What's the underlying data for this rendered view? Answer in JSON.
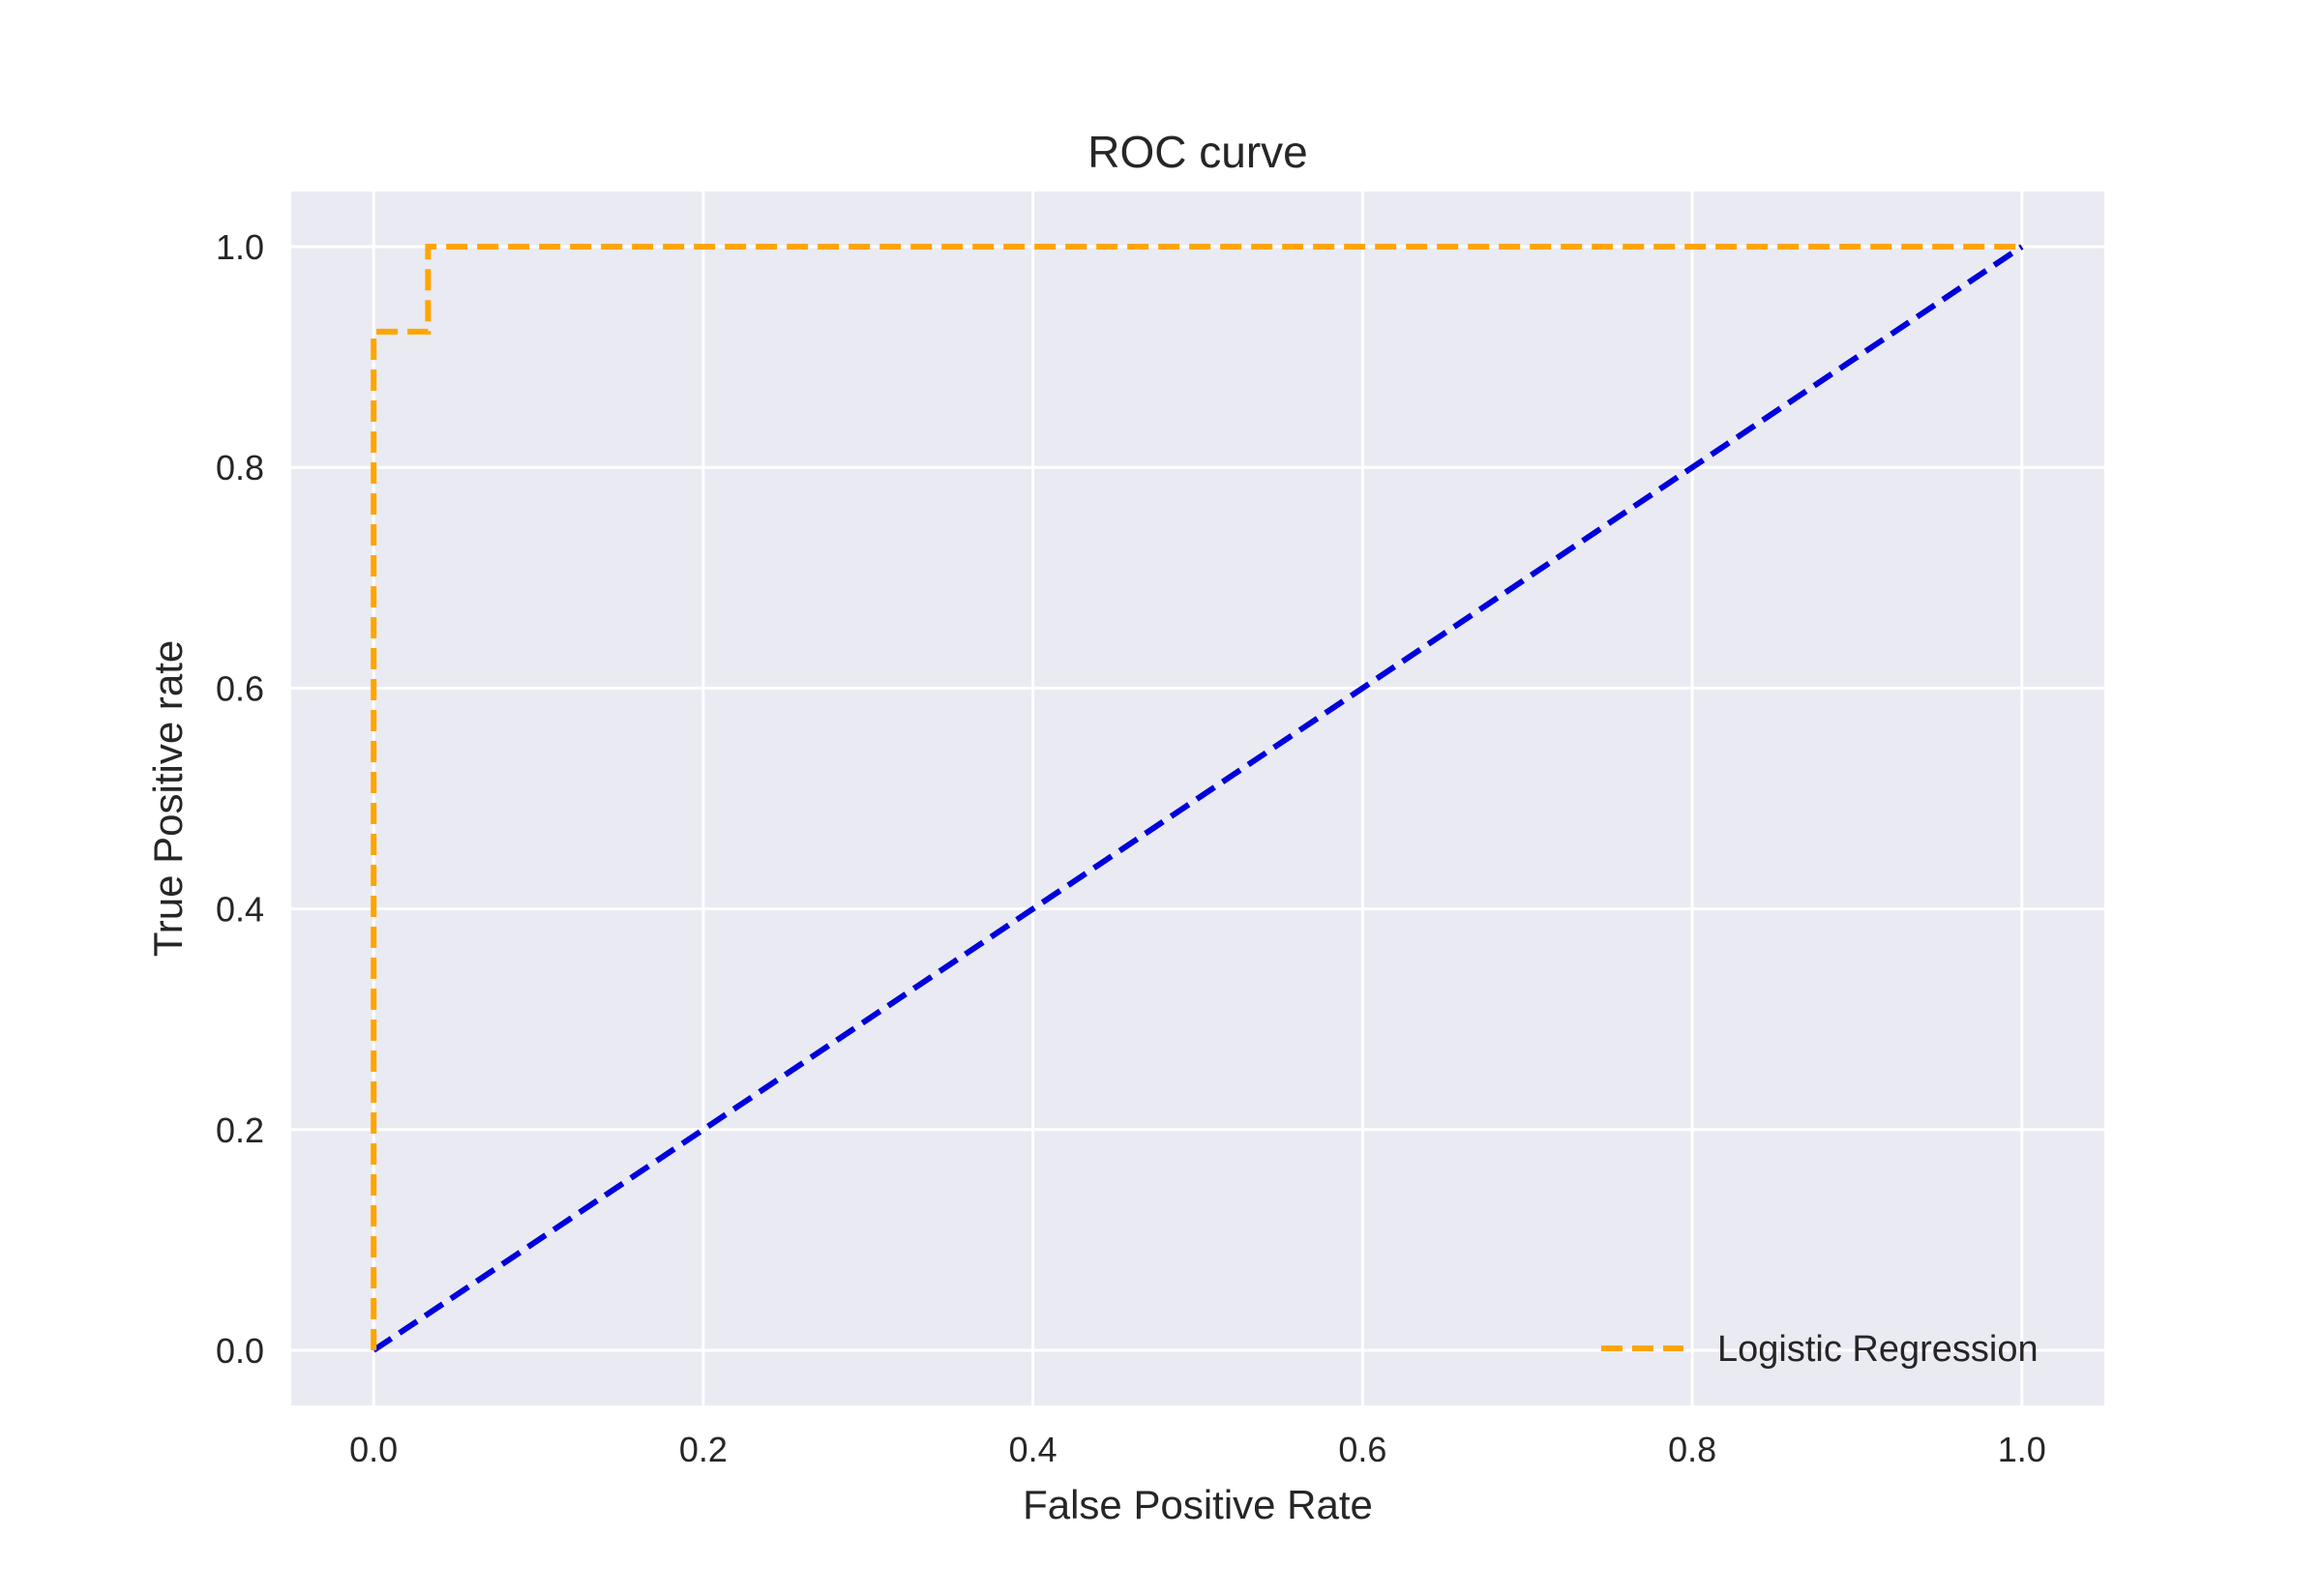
{
  "chart_data": {
    "type": "line",
    "title": "ROC curve",
    "xlabel": "False Positive Rate",
    "ylabel": "True Positive rate",
    "xlim": [
      -0.05,
      1.05
    ],
    "ylim": [
      -0.05,
      1.05
    ],
    "xticks": [
      0.0,
      0.2,
      0.4,
      0.6,
      0.8,
      1.0
    ],
    "yticks": [
      0.0,
      0.2,
      0.4,
      0.6,
      0.8,
      1.0
    ],
    "xtick_labels": [
      "0.0",
      "0.2",
      "0.4",
      "0.6",
      "0.8",
      "1.0"
    ],
    "ytick_labels": [
      "0.0",
      "0.2",
      "0.4",
      "0.6",
      "0.8",
      "1.0"
    ],
    "grid": true,
    "legend_position": "lower-right",
    "series": [
      {
        "name": "Logistic Regression",
        "color": "#ffa500",
        "style": "dashed",
        "x": [
          0.0,
          0.0,
          0.033,
          0.033,
          1.0
        ],
        "y": [
          0.0,
          0.923,
          0.923,
          1.0,
          1.0
        ],
        "in_legend": true
      },
      {
        "color": "#0000dd",
        "style": "dashed",
        "x": [
          0.0,
          1.0
        ],
        "y": [
          0.0,
          1.0
        ],
        "in_legend": false
      }
    ],
    "colors": {
      "plot_background": "#eaeaf2",
      "grid": "#ffffff",
      "text": "#262626"
    }
  }
}
